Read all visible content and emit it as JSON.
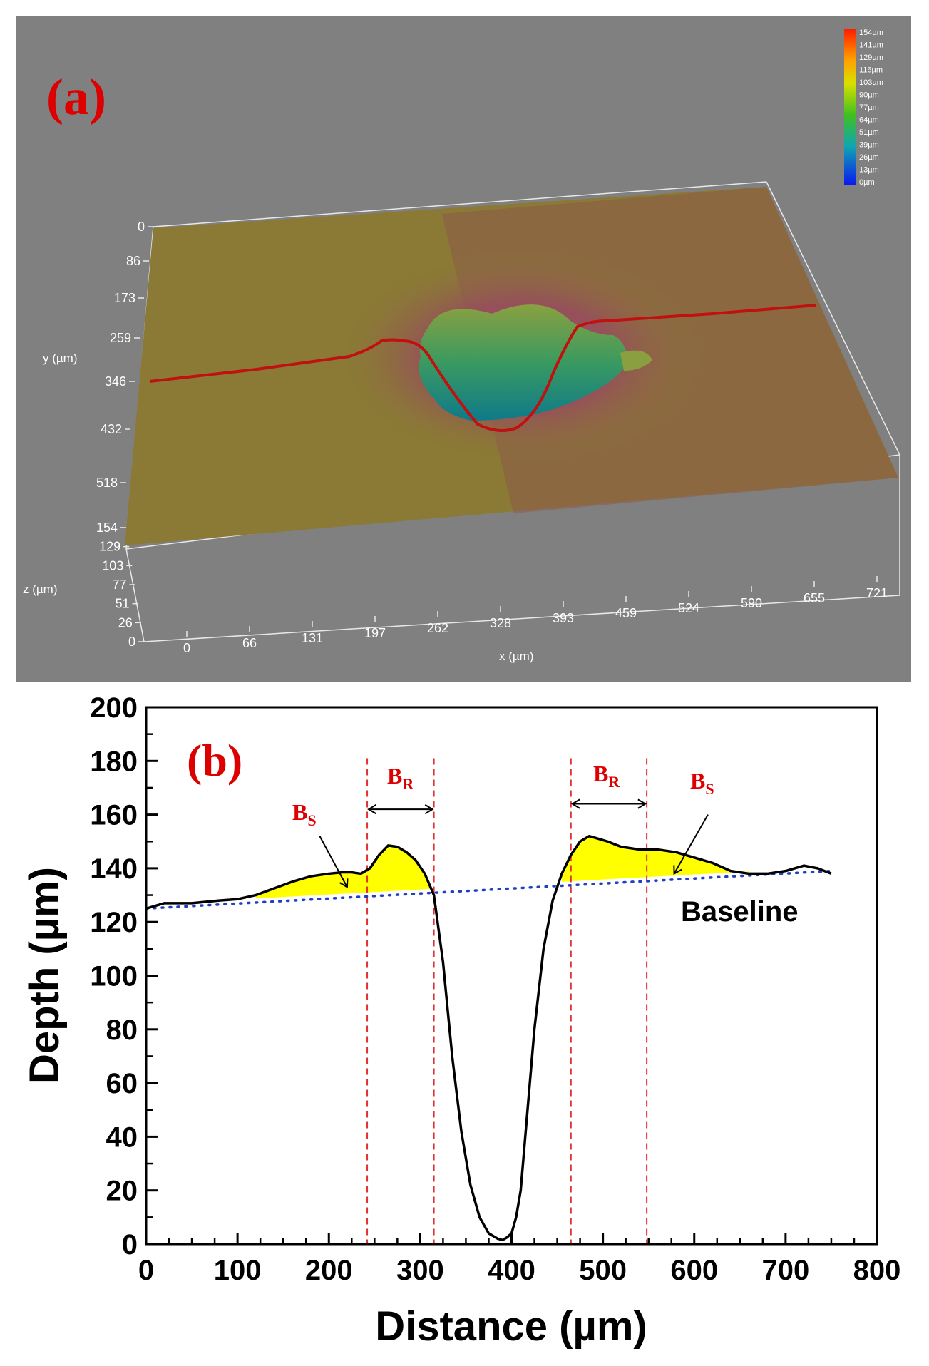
{
  "panel_a": {
    "label": "(a)",
    "colorbar_labels": [
      "154µm",
      "141µm",
      "129µm",
      "116µm",
      "103µm",
      "90µm",
      "77µm",
      "64µm",
      "51µm",
      "39µm",
      "26µm",
      "13µm",
      "0µm"
    ],
    "colorbar_colors": [
      "#ff1a00",
      "#ff5a00",
      "#ff9a00",
      "#ffd000",
      "#d8e000",
      "#a6d400",
      "#6ccc00",
      "#2ec020",
      "#10b070",
      "#10a6b0",
      "#1080d8",
      "#1050e8",
      "#0a18f0"
    ],
    "y_axis_label": "y (µm)",
    "y_ticks": [
      "0",
      "86",
      "173",
      "259",
      "346",
      "432",
      "518"
    ],
    "z_axis_label": "z (µm)",
    "z_ticks": [
      "154",
      "129",
      "103",
      "77",
      "51",
      "26",
      "0"
    ],
    "x_axis_label": "x (µm)",
    "x_ticks": [
      "0",
      "66",
      "131",
      "197",
      "262",
      "328",
      "393",
      "459",
      "524",
      "590",
      "655",
      "721"
    ],
    "colors": {
      "background": "#808080",
      "surface_base": "#8a7a35",
      "surface_rim": "#9a4a5a",
      "crater": "#1a8a7a",
      "profile_line": "#c01010",
      "label": "#dd0000"
    }
  },
  "chart_data": {
    "type": "line",
    "label": "(b)",
    "title": "",
    "xlabel": "Distance (µm)",
    "ylabel": "Depth (µm)",
    "xlim": [
      0,
      800
    ],
    "ylim": [
      0,
      200
    ],
    "xticks": [
      "0",
      "100",
      "200",
      "300",
      "400",
      "500",
      "600",
      "700",
      "800"
    ],
    "yticks": [
      "0",
      "20",
      "40",
      "60",
      "80",
      "100",
      "120",
      "140",
      "160",
      "180",
      "200"
    ],
    "series": [
      {
        "name": "profile",
        "x": [
          0,
          20,
          50,
          80,
          100,
          120,
          140,
          160,
          180,
          200,
          215,
          225,
          235,
          245,
          255,
          265,
          275,
          285,
          295,
          305,
          315,
          325,
          335,
          345,
          355,
          365,
          375,
          385,
          390,
          395,
          400,
          405,
          410,
          415,
          425,
          435,
          445,
          455,
          465,
          475,
          485,
          495,
          505,
          520,
          540,
          560,
          580,
          600,
          620,
          640,
          660,
          680,
          700,
          720,
          735,
          750
        ],
        "y": [
          125,
          127,
          127,
          128,
          128.5,
          130,
          132.5,
          135,
          137,
          138,
          138.5,
          138.5,
          138,
          140,
          145,
          148.5,
          148,
          146,
          143,
          138,
          130,
          105,
          70,
          42,
          22,
          10,
          4,
          2,
          1.5,
          2.5,
          4,
          10,
          20,
          40,
          80,
          110,
          128,
          138,
          145,
          150,
          152,
          151,
          150,
          148,
          147,
          147,
          146,
          144,
          142,
          139,
          138,
          138,
          139,
          141,
          140,
          138
        ],
        "color": "#000000"
      },
      {
        "name": "Baseline",
        "x": [
          0,
          750
        ],
        "y": [
          125,
          139
        ],
        "color": "#2040c0"
      }
    ],
    "fill_regions": [
      {
        "name": "B_S left",
        "x_from": 120,
        "x_to": 315
      },
      {
        "name": "B_S right",
        "x_from": 455,
        "x_to": 660
      }
    ],
    "vertical_markers": [
      242,
      315,
      465,
      548
    ],
    "annotations": {
      "baseline_label": "Baseline",
      "b_r_left": {
        "main": "B",
        "sub": "R"
      },
      "b_r_right": {
        "main": "B",
        "sub": "R"
      },
      "b_s_left": {
        "main": "B",
        "sub": "S"
      },
      "b_s_right": {
        "main": "B",
        "sub": "S"
      }
    },
    "colors": {
      "fill": "#ffff00",
      "markers": "#e03030",
      "annotation": "#dd0000",
      "arrow": "#000000"
    }
  }
}
